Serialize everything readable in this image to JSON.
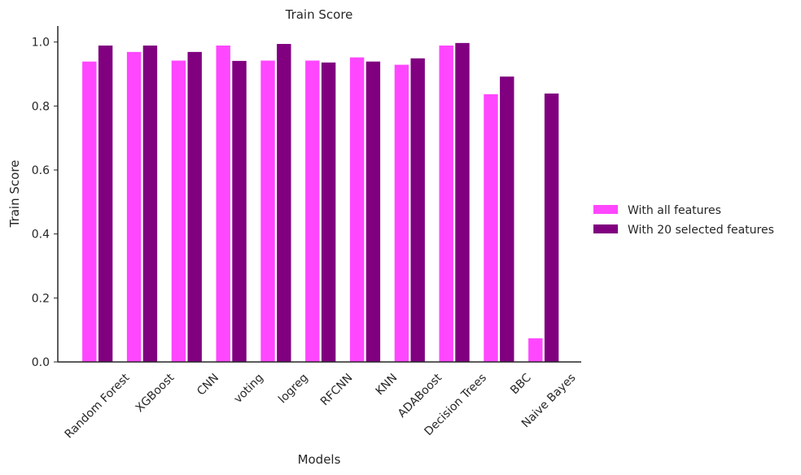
{
  "chart_data": {
    "type": "bar",
    "title": "Train Score",
    "xlabel": "Models",
    "ylabel": "Train Score",
    "ylim": [
      0,
      1.05
    ],
    "yticks": [
      "0.0",
      "0.2",
      "0.4",
      "0.6",
      "0.8",
      "1.0"
    ],
    "categories": [
      "Random Forest",
      "XGBoost",
      "CNN",
      "voting",
      "logreg",
      "RFCNN",
      "KNN",
      "ADABoost",
      "Decision Trees",
      "BBC",
      "Naive Bayes"
    ],
    "series": [
      {
        "name": "With all features",
        "color": "#ff47ff",
        "values": [
          0.94,
          0.97,
          0.943,
          0.99,
          0.943,
          0.943,
          0.953,
          0.93,
          0.99,
          0.838,
          0.075
        ]
      },
      {
        "name": "With 20 selected features",
        "color": "#800080",
        "values": [
          0.99,
          0.99,
          0.97,
          0.942,
          0.995,
          0.937,
          0.94,
          0.95,
          0.998,
          0.893,
          0.84
        ]
      }
    ],
    "legend_position": "right",
    "grid": false
  }
}
